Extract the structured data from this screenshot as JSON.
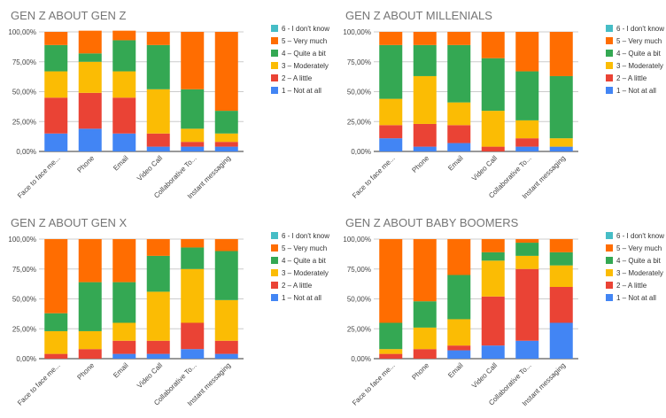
{
  "legend_order": [
    "6",
    "5",
    "4",
    "3",
    "2",
    "1"
  ],
  "chart_data": [
    {
      "type": "bar",
      "stacked": true,
      "title": "GEN Z ABOUT GEN Z",
      "categories": [
        "Face to face me...",
        "Phone",
        "Email",
        "Video Call",
        "Collaborative To...",
        "Instant messaging"
      ],
      "yticks": [
        "0,00%",
        "25,00%",
        "50,00%",
        "75,00%",
        "100,00%"
      ],
      "ylim": [
        0,
        100
      ],
      "grid": true,
      "legend": "right",
      "series": [
        {
          "key": "1",
          "name": "1 – Not at all",
          "color": "#4285f4",
          "values": [
            15,
            19,
            15,
            4,
            4,
            4
          ]
        },
        {
          "key": "2",
          "name": "2 – A little",
          "color": "#ea4335",
          "values": [
            30,
            30,
            30,
            11,
            4,
            4
          ]
        },
        {
          "key": "3",
          "name": "3 – Moderately",
          "color": "#fbbc04",
          "values": [
            22,
            26,
            22,
            37,
            11,
            7
          ]
        },
        {
          "key": "4",
          "name": "4 – Quite a bit",
          "color": "#34a853",
          "values": [
            22,
            7,
            26,
            37,
            33,
            19
          ]
        },
        {
          "key": "5",
          "name": "5 – Very much",
          "color": "#ff6d01",
          "values": [
            11,
            19,
            8,
            11,
            48,
            66
          ]
        },
        {
          "key": "6",
          "name": "6 - I don't know",
          "color": "#46bdc6",
          "values": [
            0,
            0,
            0,
            0,
            0,
            0
          ]
        }
      ]
    },
    {
      "type": "bar",
      "stacked": true,
      "title": "GEN Z ABOUT MILLENIALS",
      "categories": [
        "Face to face me...",
        "Phone",
        "Email",
        "Video Call",
        "Collaborative To...",
        "Instant messaging"
      ],
      "yticks": [
        "0,00%",
        "25,00%",
        "50,00%",
        "75,00%",
        "100,00%"
      ],
      "ylim": [
        0,
        100
      ],
      "grid": true,
      "legend": "right",
      "series": [
        {
          "key": "1",
          "name": "1 – Not at all",
          "color": "#4285f4",
          "values": [
            11,
            4,
            7,
            0,
            4,
            4
          ]
        },
        {
          "key": "2",
          "name": "2 – A little",
          "color": "#ea4335",
          "values": [
            11,
            19,
            15,
            4,
            7,
            0
          ]
        },
        {
          "key": "3",
          "name": "3 – Moderately",
          "color": "#fbbc04",
          "values": [
            22,
            40,
            19,
            30,
            15,
            7
          ]
        },
        {
          "key": "4",
          "name": "4 – Quite a bit",
          "color": "#34a853",
          "values": [
            45,
            26,
            48,
            44,
            41,
            52
          ]
        },
        {
          "key": "5",
          "name": "5 – Very much",
          "color": "#ff6d01",
          "values": [
            11,
            11,
            11,
            22,
            33,
            37
          ]
        },
        {
          "key": "6",
          "name": "6 - I don't know",
          "color": "#46bdc6",
          "values": [
            0,
            0,
            0,
            0,
            0,
            0
          ]
        }
      ]
    },
    {
      "type": "bar",
      "stacked": true,
      "title": "GEN Z ABOUT GEN X",
      "categories": [
        "Face to face me...",
        "Phone",
        "Email",
        "Video Call",
        "Collaborative To...",
        "Instant messaging"
      ],
      "yticks": [
        "0,00%",
        "25,00%",
        "50,00%",
        "75,00%",
        "100,00%"
      ],
      "ylim": [
        0,
        100
      ],
      "grid": true,
      "legend": "right",
      "series": [
        {
          "key": "1",
          "name": "1 – Not at all",
          "color": "#4285f4",
          "values": [
            0,
            0,
            4,
            4,
            8,
            4
          ]
        },
        {
          "key": "2",
          "name": "2 – A little",
          "color": "#ea4335",
          "values": [
            4,
            8,
            11,
            11,
            22,
            11
          ]
        },
        {
          "key": "3",
          "name": "3 – Moderately",
          "color": "#fbbc04",
          "values": [
            19,
            15,
            15,
            41,
            45,
            34
          ]
        },
        {
          "key": "4",
          "name": "4 – Quite a bit",
          "color": "#34a853",
          "values": [
            15,
            41,
            34,
            30,
            18,
            41
          ]
        },
        {
          "key": "5",
          "name": "5 – Very much",
          "color": "#ff6d01",
          "values": [
            62,
            36,
            36,
            14,
            7,
            10
          ]
        },
        {
          "key": "6",
          "name": "6 - I don't know",
          "color": "#46bdc6",
          "values": [
            0,
            0,
            0,
            0,
            0,
            0
          ]
        }
      ]
    },
    {
      "type": "bar",
      "stacked": true,
      "title": "GEN Z ABOUT BABY BOOMERS",
      "categories": [
        "Face to face me...",
        "Phone",
        "Email",
        "Video Call",
        "Collaborative To...",
        "Instant messaging"
      ],
      "yticks": [
        "0,00%",
        "25,00%",
        "50,00%",
        "75,00%",
        "100,00%"
      ],
      "ylim": [
        0,
        100
      ],
      "grid": true,
      "legend": "right",
      "series": [
        {
          "key": "1",
          "name": "1 – Not at all",
          "color": "#4285f4",
          "values": [
            0,
            0,
            7,
            11,
            15,
            30
          ]
        },
        {
          "key": "2",
          "name": "2 – A little",
          "color": "#ea4335",
          "values": [
            4,
            8,
            4,
            41,
            60,
            30
          ]
        },
        {
          "key": "3",
          "name": "3 – Moderately",
          "color": "#fbbc04",
          "values": [
            4,
            18,
            22,
            30,
            11,
            18
          ]
        },
        {
          "key": "4",
          "name": "4 – Quite a bit",
          "color": "#34a853",
          "values": [
            22,
            22,
            37,
            7,
            11,
            11
          ]
        },
        {
          "key": "5",
          "name": "5 – Very much",
          "color": "#ff6d01",
          "values": [
            70,
            52,
            30,
            11,
            3,
            11
          ]
        },
        {
          "key": "6",
          "name": "6 - I don't know",
          "color": "#46bdc6",
          "values": [
            0,
            0,
            0,
            0,
            0,
            0
          ]
        }
      ]
    }
  ]
}
